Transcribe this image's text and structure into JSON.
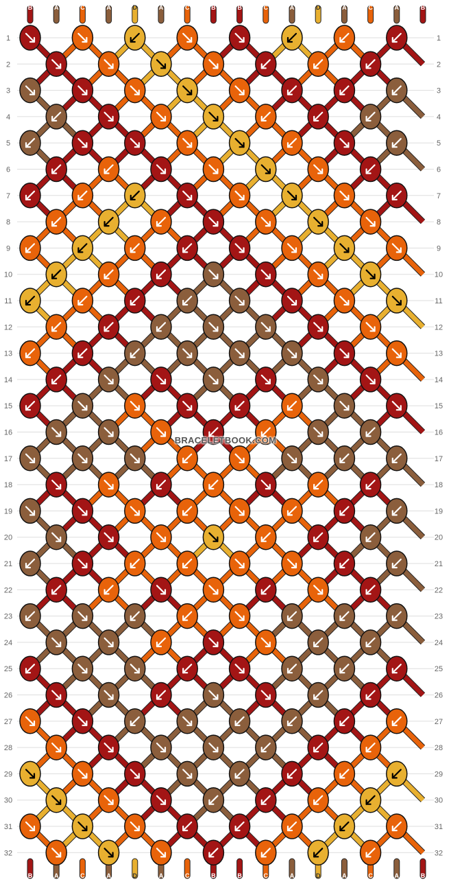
{
  "watermark": "BRACELETBOOK.COM",
  "colors": {
    "A": "#8B5E3C",
    "B": "#A31515",
    "C": "#E8630A",
    "D": "#E8B030"
  },
  "top_strings": [
    "B",
    "A",
    "C",
    "A",
    "D",
    "A",
    "C",
    "B",
    "B",
    "C",
    "A",
    "D",
    "A",
    "C",
    "A",
    "B"
  ],
  "bottom_strings": [
    "B",
    "A",
    "C",
    "A",
    "D",
    "A",
    "C",
    "B",
    "B",
    "C",
    "A",
    "D",
    "A",
    "C",
    "A",
    "B"
  ],
  "row_numbers": [
    "1",
    "2",
    "3",
    "4",
    "5",
    "6",
    "7",
    "8",
    "9",
    "10",
    "11",
    "12",
    "13",
    "14",
    "15",
    "16",
    "17",
    "18",
    "19",
    "20",
    "21",
    "22",
    "23",
    "24",
    "25",
    "26",
    "27",
    "28",
    "29",
    "30",
    "31",
    "32"
  ],
  "knots": [
    [
      {
        "c": "B",
        "d": "se"
      },
      {
        "c": "C",
        "d": "se"
      },
      {
        "c": "D",
        "d": "sw"
      },
      {
        "c": "C",
        "d": "se"
      },
      {
        "c": "B",
        "d": "se"
      },
      {
        "c": "D",
        "d": "sw"
      },
      {
        "c": "C",
        "d": "sw"
      },
      {
        "c": "B",
        "d": "sw"
      }
    ],
    [
      {
        "c": "B",
        "d": "se"
      },
      {
        "c": "C",
        "d": "se"
      },
      {
        "c": "D",
        "d": "se"
      },
      {
        "c": "C",
        "d": "se"
      },
      {
        "c": "B",
        "d": "sw"
      },
      {
        "c": "C",
        "d": "sw"
      },
      {
        "c": "B",
        "d": "sw"
      }
    ],
    [
      {
        "c": "A",
        "d": "se"
      },
      {
        "c": "B",
        "d": "se"
      },
      {
        "c": "C",
        "d": "se"
      },
      {
        "c": "D",
        "d": "se"
      },
      {
        "c": "C",
        "d": "se"
      },
      {
        "c": "B",
        "d": "sw"
      },
      {
        "c": "B",
        "d": "sw"
      },
      {
        "c": "A",
        "d": "sw"
      }
    ],
    [
      {
        "c": "A",
        "d": "sw"
      },
      {
        "c": "B",
        "d": "se"
      },
      {
        "c": "C",
        "d": "se"
      },
      {
        "c": "D",
        "d": "se"
      },
      {
        "c": "C",
        "d": "sw"
      },
      {
        "c": "B",
        "d": "sw"
      },
      {
        "c": "A",
        "d": "sw"
      }
    ],
    [
      {
        "c": "A",
        "d": "sw"
      },
      {
        "c": "B",
        "d": "se"
      },
      {
        "c": "B",
        "d": "se"
      },
      {
        "c": "C",
        "d": "se"
      },
      {
        "c": "D",
        "d": "se"
      },
      {
        "c": "C",
        "d": "sw"
      },
      {
        "c": "B",
        "d": "se"
      },
      {
        "c": "A",
        "d": "sw"
      }
    ],
    [
      {
        "c": "B",
        "d": "sw"
      },
      {
        "c": "C",
        "d": "sw"
      },
      {
        "c": "B",
        "d": "se"
      },
      {
        "c": "C",
        "d": "se"
      },
      {
        "c": "D",
        "d": "se"
      },
      {
        "c": "C",
        "d": "se"
      },
      {
        "c": "B",
        "d": "sw"
      }
    ],
    [
      {
        "c": "B",
        "d": "sw"
      },
      {
        "c": "C",
        "d": "sw"
      },
      {
        "c": "D",
        "d": "sw"
      },
      {
        "c": "B",
        "d": "se"
      },
      {
        "c": "C",
        "d": "se"
      },
      {
        "c": "D",
        "d": "se"
      },
      {
        "c": "C",
        "d": "se"
      },
      {
        "c": "B",
        "d": "sw"
      }
    ],
    [
      {
        "c": "C",
        "d": "sw"
      },
      {
        "c": "D",
        "d": "sw"
      },
      {
        "c": "C",
        "d": "sw"
      },
      {
        "c": "B",
        "d": "se"
      },
      {
        "c": "C",
        "d": "se"
      },
      {
        "c": "D",
        "d": "se"
      },
      {
        "c": "C",
        "d": "se"
      }
    ],
    [
      {
        "c": "C",
        "d": "sw"
      },
      {
        "c": "D",
        "d": "sw"
      },
      {
        "c": "C",
        "d": "sw"
      },
      {
        "c": "B",
        "d": "sw"
      },
      {
        "c": "B",
        "d": "se"
      },
      {
        "c": "C",
        "d": "se"
      },
      {
        "c": "D",
        "d": "se"
      },
      {
        "c": "C",
        "d": "se"
      }
    ],
    [
      {
        "c": "D",
        "d": "sw"
      },
      {
        "c": "C",
        "d": "sw"
      },
      {
        "c": "B",
        "d": "sw"
      },
      {
        "c": "A",
        "d": "se"
      },
      {
        "c": "B",
        "d": "se"
      },
      {
        "c": "C",
        "d": "se"
      },
      {
        "c": "D",
        "d": "se"
      }
    ],
    [
      {
        "c": "D",
        "d": "sw"
      },
      {
        "c": "C",
        "d": "sw"
      },
      {
        "c": "B",
        "d": "sw"
      },
      {
        "c": "A",
        "d": "sw"
      },
      {
        "c": "A",
        "d": "se"
      },
      {
        "c": "B",
        "d": "se"
      },
      {
        "c": "C",
        "d": "se"
      },
      {
        "c": "D",
        "d": "se"
      }
    ],
    [
      {
        "c": "C",
        "d": "sw"
      },
      {
        "c": "B",
        "d": "sw"
      },
      {
        "c": "A",
        "d": "sw"
      },
      {
        "c": "A",
        "d": "se"
      },
      {
        "c": "A",
        "d": "se"
      },
      {
        "c": "B",
        "d": "se"
      },
      {
        "c": "C",
        "d": "se"
      }
    ],
    [
      {
        "c": "C",
        "d": "sw"
      },
      {
        "c": "B",
        "d": "sw"
      },
      {
        "c": "A",
        "d": "sw"
      },
      {
        "c": "A",
        "d": "se"
      },
      {
        "c": "A",
        "d": "se"
      },
      {
        "c": "A",
        "d": "se"
      },
      {
        "c": "B",
        "d": "se"
      },
      {
        "c": "C",
        "d": "se"
      }
    ],
    [
      {
        "c": "B",
        "d": "sw"
      },
      {
        "c": "A",
        "d": "se"
      },
      {
        "c": "B",
        "d": "se"
      },
      {
        "c": "A",
        "d": "se"
      },
      {
        "c": "B",
        "d": "se"
      },
      {
        "c": "A",
        "d": "se"
      },
      {
        "c": "B",
        "d": "se"
      }
    ],
    [
      {
        "c": "B",
        "d": "sw"
      },
      {
        "c": "A",
        "d": "se"
      },
      {
        "c": "C",
        "d": "se"
      },
      {
        "c": "B",
        "d": "se"
      },
      {
        "c": "B",
        "d": "sw"
      },
      {
        "c": "C",
        "d": "sw"
      },
      {
        "c": "A",
        "d": "se"
      },
      {
        "c": "B",
        "d": "se"
      }
    ],
    [
      {
        "c": "A",
        "d": "se"
      },
      {
        "c": "A",
        "d": "se"
      },
      {
        "c": "C",
        "d": "se"
      },
      {
        "c": "B",
        "d": "sw"
      },
      {
        "c": "C",
        "d": "sw"
      },
      {
        "c": "A",
        "d": "se"
      },
      {
        "c": "A",
        "d": "sw"
      }
    ],
    [
      {
        "c": "A",
        "d": "se"
      },
      {
        "c": "A",
        "d": "se"
      },
      {
        "c": "A",
        "d": "se"
      },
      {
        "c": "C",
        "d": "sw"
      },
      {
        "c": "C",
        "d": "se"
      },
      {
        "c": "A",
        "d": "se"
      },
      {
        "c": "A",
        "d": "sw"
      },
      {
        "c": "A",
        "d": "sw"
      }
    ],
    [
      {
        "c": "B",
        "d": "se"
      },
      {
        "c": "C",
        "d": "se"
      },
      {
        "c": "B",
        "d": "sw"
      },
      {
        "c": "C",
        "d": "sw"
      },
      {
        "c": "B",
        "d": "se"
      },
      {
        "c": "C",
        "d": "sw"
      },
      {
        "c": "B",
        "d": "sw"
      }
    ],
    [
      {
        "c": "A",
        "d": "se"
      },
      {
        "c": "B",
        "d": "se"
      },
      {
        "c": "C",
        "d": "se"
      },
      {
        "c": "C",
        "d": "sw"
      },
      {
        "c": "C",
        "d": "se"
      },
      {
        "c": "C",
        "d": "sw"
      },
      {
        "c": "B",
        "d": "sw"
      },
      {
        "c": "A",
        "d": "sw"
      }
    ],
    [
      {
        "c": "A",
        "d": "se"
      },
      {
        "c": "B",
        "d": "se"
      },
      {
        "c": "C",
        "d": "se"
      },
      {
        "c": "D",
        "d": "se"
      },
      {
        "c": "C",
        "d": "sw"
      },
      {
        "c": "B",
        "d": "sw"
      },
      {
        "c": "A",
        "d": "sw"
      }
    ],
    [
      {
        "c": "A",
        "d": "sw"
      },
      {
        "c": "B",
        "d": "se"
      },
      {
        "c": "C",
        "d": "sw"
      },
      {
        "c": "C",
        "d": "sw"
      },
      {
        "c": "C",
        "d": "se"
      },
      {
        "c": "C",
        "d": "se"
      },
      {
        "c": "B",
        "d": "sw"
      },
      {
        "c": "A",
        "d": "sw"
      }
    ],
    [
      {
        "c": "B",
        "d": "sw"
      },
      {
        "c": "C",
        "d": "sw"
      },
      {
        "c": "B",
        "d": "se"
      },
      {
        "c": "C",
        "d": "se"
      },
      {
        "c": "B",
        "d": "sw"
      },
      {
        "c": "C",
        "d": "se"
      },
      {
        "c": "B",
        "d": "sw"
      }
    ],
    [
      {
        "c": "A",
        "d": "sw"
      },
      {
        "c": "A",
        "d": "se"
      },
      {
        "c": "A",
        "d": "sw"
      },
      {
        "c": "C",
        "d": "sw"
      },
      {
        "c": "C",
        "d": "se"
      },
      {
        "c": "A",
        "d": "sw"
      },
      {
        "c": "A",
        "d": "sw"
      },
      {
        "c": "A",
        "d": "sw"
      }
    ],
    [
      {
        "c": "A",
        "d": "se"
      },
      {
        "c": "A",
        "d": "se"
      },
      {
        "c": "C",
        "d": "sw"
      },
      {
        "c": "B",
        "d": "se"
      },
      {
        "c": "C",
        "d": "se"
      },
      {
        "c": "A",
        "d": "sw"
      },
      {
        "c": "A",
        "d": "sw"
      }
    ],
    [
      {
        "c": "B",
        "d": "sw"
      },
      {
        "c": "A",
        "d": "se"
      },
      {
        "c": "A",
        "d": "se"
      },
      {
        "c": "B",
        "d": "sw"
      },
      {
        "c": "B",
        "d": "se"
      },
      {
        "c": "A",
        "d": "sw"
      },
      {
        "c": "A",
        "d": "sw"
      },
      {
        "c": "B",
        "d": "sw"
      }
    ],
    [
      {
        "c": "B",
        "d": "se"
      },
      {
        "c": "A",
        "d": "se"
      },
      {
        "c": "B",
        "d": "sw"
      },
      {
        "c": "A",
        "d": "se"
      },
      {
        "c": "B",
        "d": "se"
      },
      {
        "c": "A",
        "d": "sw"
      },
      {
        "c": "B",
        "d": "sw"
      }
    ],
    [
      {
        "c": "C",
        "d": "se"
      },
      {
        "c": "B",
        "d": "se"
      },
      {
        "c": "A",
        "d": "sw"
      },
      {
        "c": "A",
        "d": "se"
      },
      {
        "c": "A",
        "d": "sw"
      },
      {
        "c": "A",
        "d": "sw"
      },
      {
        "c": "B",
        "d": "sw"
      },
      {
        "c": "C",
        "d": "sw"
      }
    ],
    [
      {
        "c": "C",
        "d": "se"
      },
      {
        "c": "B",
        "d": "se"
      },
      {
        "c": "A",
        "d": "se"
      },
      {
        "c": "A",
        "d": "se"
      },
      {
        "c": "A",
        "d": "sw"
      },
      {
        "c": "B",
        "d": "sw"
      },
      {
        "c": "C",
        "d": "sw"
      }
    ],
    [
      {
        "c": "D",
        "d": "se"
      },
      {
        "c": "C",
        "d": "se"
      },
      {
        "c": "B",
        "d": "se"
      },
      {
        "c": "A",
        "d": "se"
      },
      {
        "c": "A",
        "d": "sw"
      },
      {
        "c": "B",
        "d": "sw"
      },
      {
        "c": "C",
        "d": "sw"
      },
      {
        "c": "D",
        "d": "sw"
      }
    ],
    [
      {
        "c": "D",
        "d": "se"
      },
      {
        "c": "C",
        "d": "se"
      },
      {
        "c": "B",
        "d": "se"
      },
      {
        "c": "A",
        "d": "sw"
      },
      {
        "c": "B",
        "d": "sw"
      },
      {
        "c": "C",
        "d": "sw"
      },
      {
        "c": "D",
        "d": "sw"
      }
    ],
    [
      {
        "c": "C",
        "d": "se"
      },
      {
        "c": "D",
        "d": "se"
      },
      {
        "c": "C",
        "d": "se"
      },
      {
        "c": "B",
        "d": "sw"
      },
      {
        "c": "B",
        "d": "sw"
      },
      {
        "c": "C",
        "d": "sw"
      },
      {
        "c": "D",
        "d": "sw"
      },
      {
        "c": "C",
        "d": "sw"
      }
    ],
    [
      {
        "c": "C",
        "d": "se"
      },
      {
        "c": "D",
        "d": "se"
      },
      {
        "c": "C",
        "d": "se"
      },
      {
        "c": "B",
        "d": "sw"
      },
      {
        "c": "C",
        "d": "sw"
      },
      {
        "c": "D",
        "d": "sw"
      },
      {
        "c": "C",
        "d": "sw"
      }
    ]
  ]
}
